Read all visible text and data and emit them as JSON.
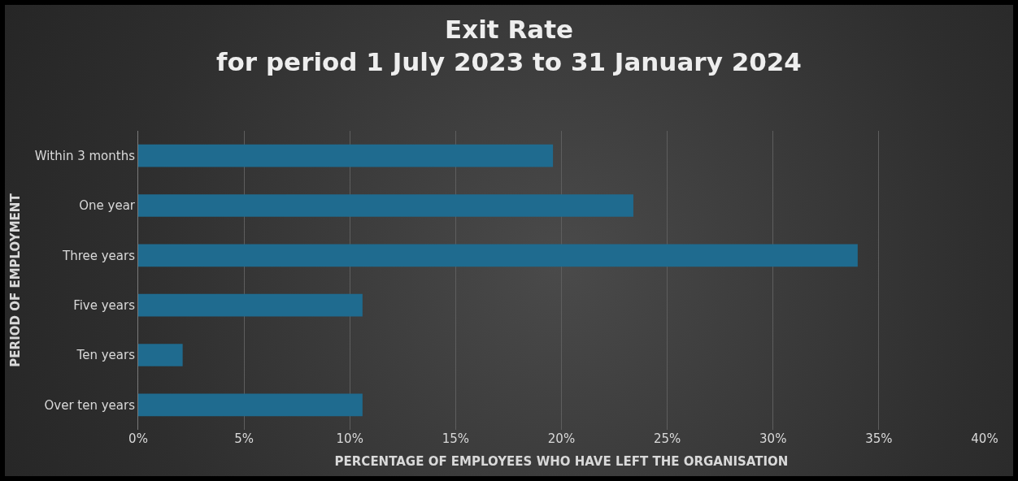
{
  "chart_data": {
    "type": "bar",
    "orientation": "horizontal",
    "title": "Exit Rate\nfor period 1 July 2023 to 31 January 2024",
    "xlabel": "PERCENTAGE OF EMPLOYEES WHO HAVE LEFT THE ORGANISATION",
    "ylabel": "PERIOD OF EMPLOYMENT",
    "categories": [
      "Within 3 months",
      "One year",
      "Three years",
      "Five years",
      "Ten years",
      "Over ten years"
    ],
    "values": [
      19.6,
      23.4,
      34.0,
      10.6,
      2.1,
      10.6
    ],
    "color": "#1f6b8f",
    "xlim": [
      0,
      40
    ],
    "xticks": [
      {
        "value": 0,
        "label": "0%"
      },
      {
        "value": 5,
        "label": "5%"
      },
      {
        "value": 10,
        "label": "10%"
      },
      {
        "value": 15,
        "label": "15%"
      },
      {
        "value": 20,
        "label": "20%"
      },
      {
        "value": 25,
        "label": "25%"
      },
      {
        "value": 30,
        "label": "30%"
      },
      {
        "value": 35,
        "label": "35%"
      },
      {
        "value": 40,
        "label": "40%"
      }
    ],
    "grid": "x"
  }
}
